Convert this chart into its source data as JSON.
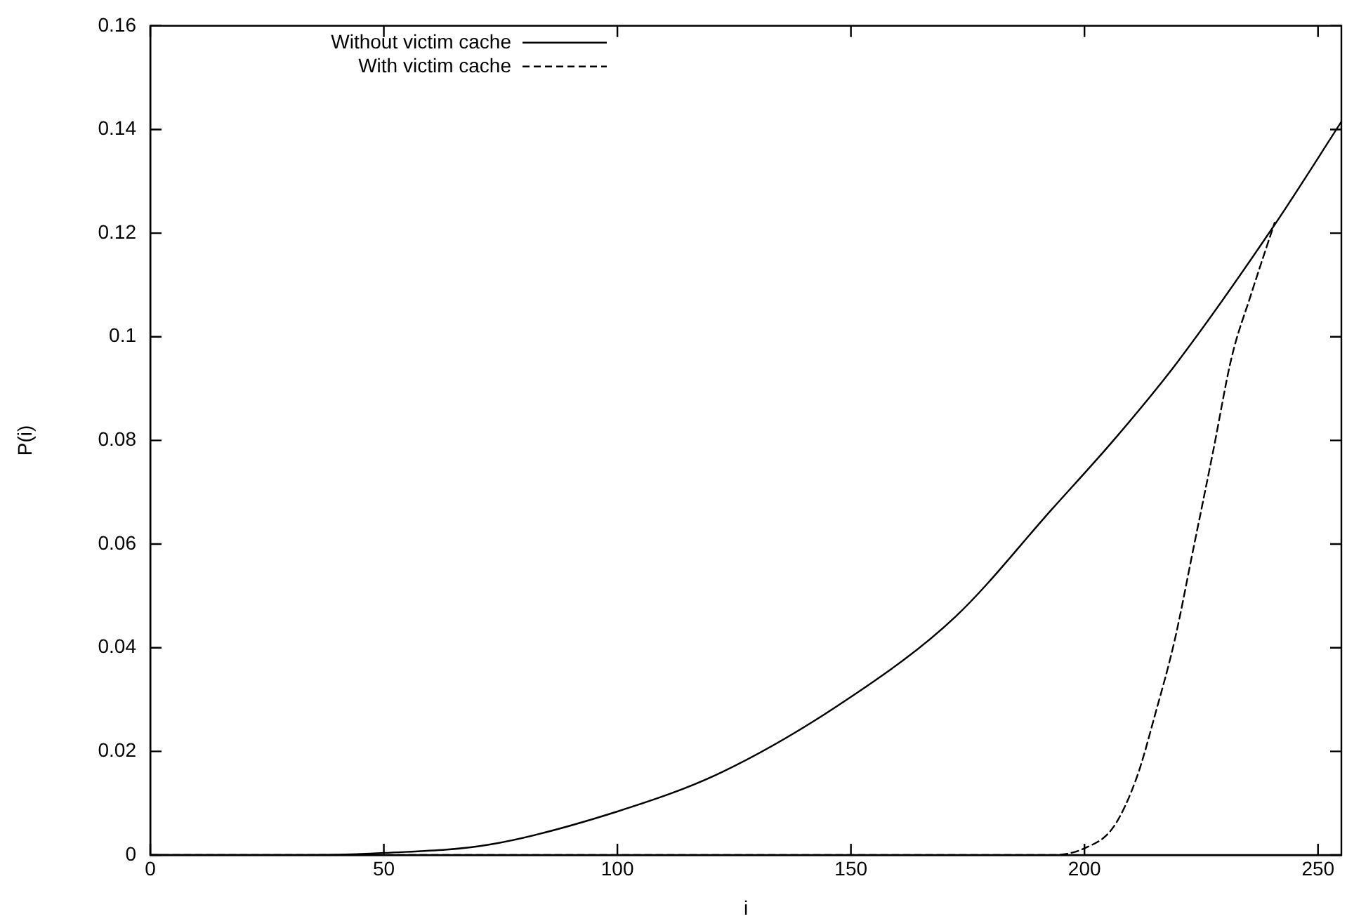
{
  "chart_data": {
    "type": "line",
    "xlabel": "i",
    "ylabel": "P(i)",
    "xlim": [
      0,
      255
    ],
    "xticks": [
      0,
      50,
      100,
      150,
      200,
      250
    ],
    "ylim": [
      0,
      0.16
    ],
    "yticks": [
      0,
      0.02,
      0.04,
      0.06,
      0.08,
      0.1,
      0.12,
      0.14,
      0.16
    ],
    "grid": false,
    "legend": "top left",
    "marker": "none",
    "series": [
      {
        "name": "Without victim cache",
        "color": "#000000",
        "line_style": "solid",
        "x": [
          0,
          34,
          50,
          72.5,
          100,
          122.4,
          150,
          172.4,
          193.2,
          206.2,
          219.8,
          240.7,
          255
        ],
        "values": [
          0,
          0,
          0.0004,
          0.002,
          0.0084,
          0.016,
          0.0305,
          0.046,
          0.0669,
          0.08,
          0.095,
          0.1216,
          0.1415
        ]
      },
      {
        "name": "With victim cache",
        "color": "#000000",
        "line_style": "dashed",
        "x": [
          0,
          193,
          200,
          206.2,
          211.2,
          215.3,
          219.3,
          223.4,
          227.5,
          231.5,
          235.6,
          240.7
        ],
        "values": [
          0,
          0,
          0.0013,
          0.0054,
          0.015,
          0.0277,
          0.0414,
          0.0595,
          0.0777,
          0.096,
          0.108,
          0.122
        ]
      }
    ]
  }
}
